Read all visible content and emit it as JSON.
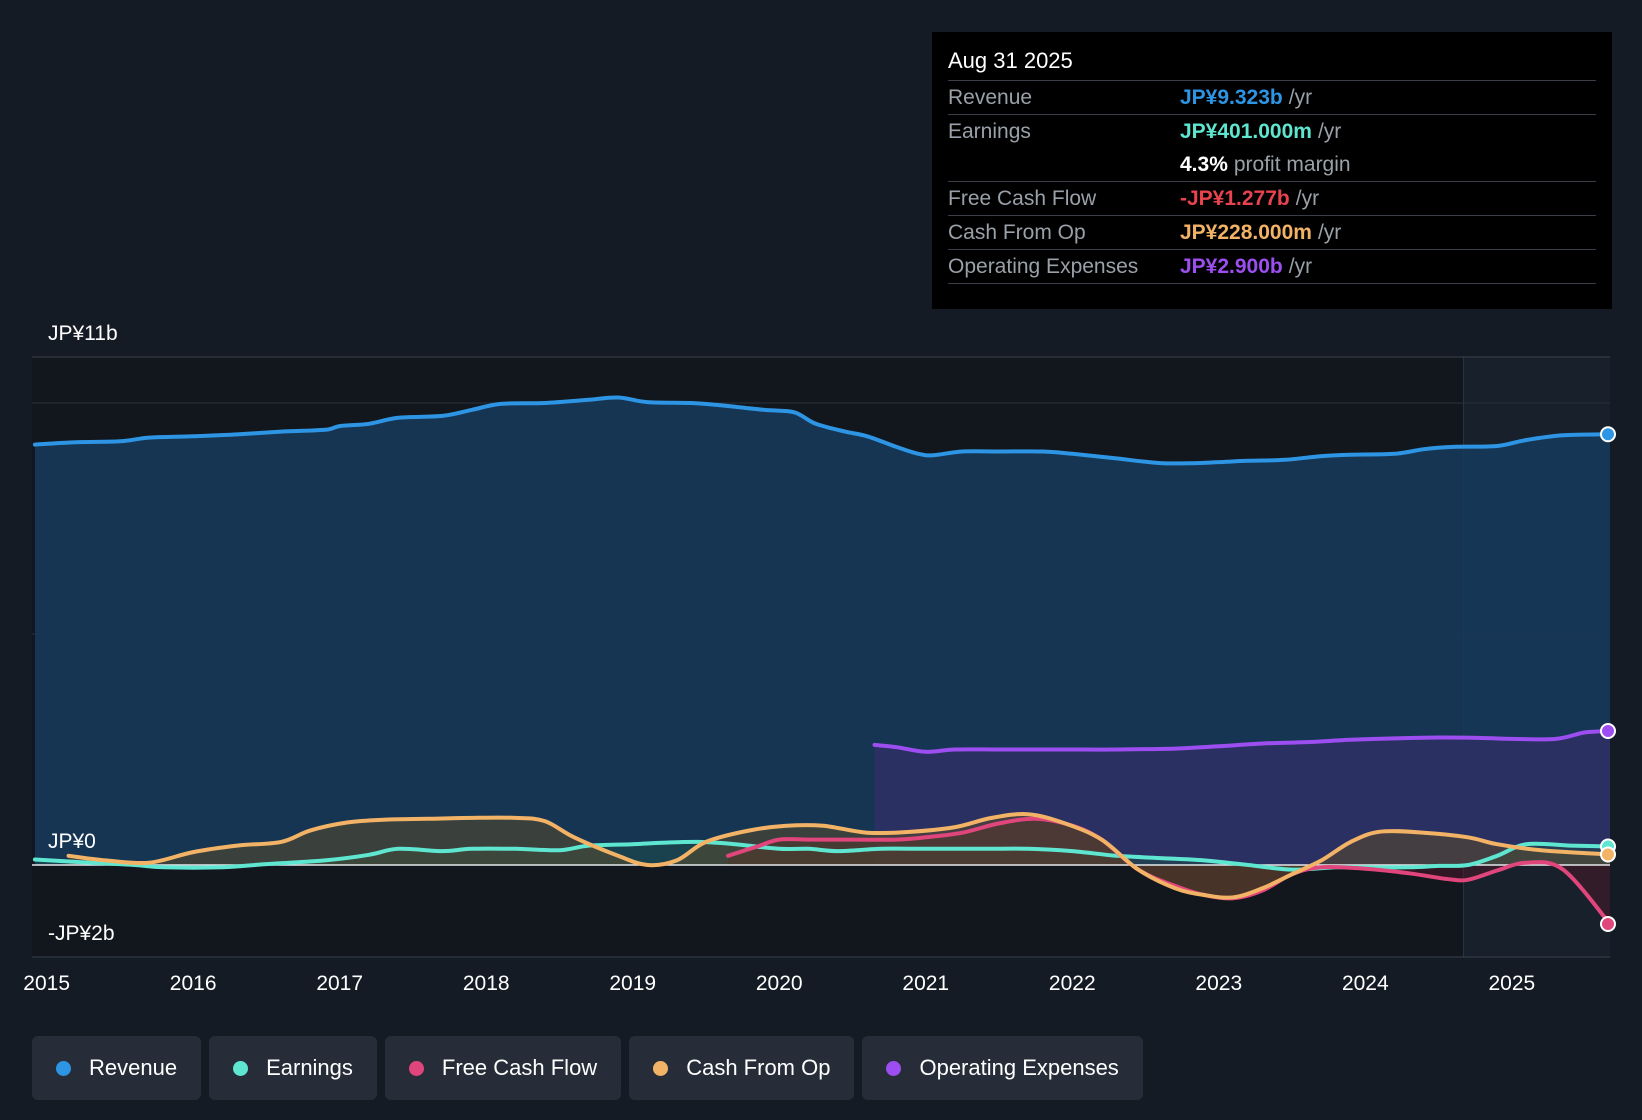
{
  "chart_data": {
    "type": "area",
    "currency": "JP¥",
    "y_labels": {
      "top": "JP¥11b",
      "zero": "JP¥0",
      "bottom": "-JP¥2b"
    },
    "ylim": [
      -2,
      11
    ],
    "xlim": [
      2014.9,
      2025.67
    ],
    "x_ticks": [
      "2015",
      "2016",
      "2017",
      "2018",
      "2019",
      "2020",
      "2021",
      "2022",
      "2023",
      "2024",
      "2025"
    ],
    "forecast_start": 2024.67,
    "series": [
      {
        "name": "Revenue",
        "color": "#2d95e3",
        "fill": "#16395a",
        "points": [
          [
            2014.92,
            9.1
          ],
          [
            2015.2,
            9.15
          ],
          [
            2015.5,
            9.17
          ],
          [
            2015.7,
            9.25
          ],
          [
            2016.0,
            9.28
          ],
          [
            2016.3,
            9.32
          ],
          [
            2016.6,
            9.38
          ],
          [
            2016.9,
            9.42
          ],
          [
            2017.0,
            9.5
          ],
          [
            2017.2,
            9.55
          ],
          [
            2017.4,
            9.68
          ],
          [
            2017.7,
            9.72
          ],
          [
            2017.9,
            9.85
          ],
          [
            2018.1,
            9.98
          ],
          [
            2018.4,
            10.0
          ],
          [
            2018.7,
            10.07
          ],
          [
            2018.9,
            10.12
          ],
          [
            2019.1,
            10.02
          ],
          [
            2019.4,
            10.0
          ],
          [
            2019.6,
            9.95
          ],
          [
            2019.9,
            9.85
          ],
          [
            2020.1,
            9.8
          ],
          [
            2020.25,
            9.55
          ],
          [
            2020.45,
            9.38
          ],
          [
            2020.6,
            9.28
          ],
          [
            2020.8,
            9.05
          ],
          [
            2020.95,
            8.9
          ],
          [
            2021.05,
            8.87
          ],
          [
            2021.25,
            8.95
          ],
          [
            2021.5,
            8.95
          ],
          [
            2021.8,
            8.95
          ],
          [
            2022.0,
            8.9
          ],
          [
            2022.3,
            8.8
          ],
          [
            2022.6,
            8.7
          ],
          [
            2022.85,
            8.7
          ],
          [
            2023.0,
            8.72
          ],
          [
            2023.2,
            8.75
          ],
          [
            2023.45,
            8.77
          ],
          [
            2023.7,
            8.85
          ],
          [
            2023.9,
            8.88
          ],
          [
            2024.2,
            8.9
          ],
          [
            2024.4,
            9.0
          ],
          [
            2024.6,
            9.05
          ],
          [
            2024.9,
            9.07
          ],
          [
            2025.1,
            9.2
          ],
          [
            2025.35,
            9.3
          ],
          [
            2025.67,
            9.323
          ]
        ]
      },
      {
        "name": "Operating Expenses",
        "color": "#9d4ef0",
        "fill": "#3d2c6e",
        "points": [
          [
            2020.65,
            2.6
          ],
          [
            2020.8,
            2.55
          ],
          [
            2021.0,
            2.45
          ],
          [
            2021.2,
            2.5
          ],
          [
            2021.5,
            2.5
          ],
          [
            2021.8,
            2.5
          ],
          [
            2022.0,
            2.5
          ],
          [
            2022.3,
            2.5
          ],
          [
            2022.7,
            2.52
          ],
          [
            2023.0,
            2.57
          ],
          [
            2023.3,
            2.63
          ],
          [
            2023.6,
            2.66
          ],
          [
            2023.9,
            2.71
          ],
          [
            2024.2,
            2.74
          ],
          [
            2024.5,
            2.76
          ],
          [
            2024.8,
            2.75
          ],
          [
            2025.0,
            2.73
          ],
          [
            2025.3,
            2.73
          ],
          [
            2025.5,
            2.87
          ],
          [
            2025.67,
            2.9
          ]
        ]
      },
      {
        "name": "Earnings",
        "color": "#5ee6d0",
        "fill": "#1f4a4a",
        "points": [
          [
            2014.92,
            0.12
          ],
          [
            2015.3,
            0.05
          ],
          [
            2015.6,
            0.0
          ],
          [
            2015.8,
            -0.05
          ],
          [
            2016.2,
            -0.05
          ],
          [
            2016.5,
            0.02
          ],
          [
            2016.9,
            0.1
          ],
          [
            2017.2,
            0.22
          ],
          [
            2017.4,
            0.35
          ],
          [
            2017.7,
            0.3
          ],
          [
            2017.9,
            0.35
          ],
          [
            2018.2,
            0.35
          ],
          [
            2018.5,
            0.32
          ],
          [
            2018.7,
            0.42
          ],
          [
            2019.0,
            0.45
          ],
          [
            2019.2,
            0.48
          ],
          [
            2019.45,
            0.5
          ],
          [
            2019.7,
            0.45
          ],
          [
            2020.0,
            0.35
          ],
          [
            2020.2,
            0.35
          ],
          [
            2020.4,
            0.3
          ],
          [
            2020.7,
            0.35
          ],
          [
            2021.0,
            0.35
          ],
          [
            2021.4,
            0.35
          ],
          [
            2021.7,
            0.35
          ],
          [
            2022.0,
            0.3
          ],
          [
            2022.3,
            0.2
          ],
          [
            2022.6,
            0.15
          ],
          [
            2022.9,
            0.1
          ],
          [
            2023.2,
            0.0
          ],
          [
            2023.5,
            -0.1
          ],
          [
            2023.8,
            -0.05
          ],
          [
            2024.0,
            -0.05
          ],
          [
            2024.3,
            -0.05
          ],
          [
            2024.5,
            -0.02
          ],
          [
            2024.7,
            0.0
          ],
          [
            2024.9,
            0.2
          ],
          [
            2025.1,
            0.45
          ],
          [
            2025.4,
            0.42
          ],
          [
            2025.67,
            0.401
          ]
        ]
      },
      {
        "name": "Free Cash Flow",
        "color": "#e0457b",
        "fill": "#4a1a2a",
        "points": [
          [
            2019.65,
            0.2
          ],
          [
            2019.85,
            0.4
          ],
          [
            2020.0,
            0.55
          ],
          [
            2020.2,
            0.55
          ],
          [
            2020.5,
            0.55
          ],
          [
            2020.8,
            0.55
          ],
          [
            2021.0,
            0.6
          ],
          [
            2021.25,
            0.7
          ],
          [
            2021.5,
            0.9
          ],
          [
            2021.75,
            1.0
          ],
          [
            2022.0,
            0.85
          ],
          [
            2022.2,
            0.55
          ],
          [
            2022.45,
            -0.1
          ],
          [
            2022.7,
            -0.45
          ],
          [
            2022.9,
            -0.65
          ],
          [
            2023.1,
            -0.72
          ],
          [
            2023.3,
            -0.55
          ],
          [
            2023.5,
            -0.2
          ],
          [
            2023.7,
            -0.05
          ],
          [
            2024.0,
            -0.08
          ],
          [
            2024.3,
            -0.18
          ],
          [
            2024.55,
            -0.3
          ],
          [
            2024.7,
            -0.32
          ],
          [
            2024.9,
            -0.12
          ],
          [
            2025.1,
            0.05
          ],
          [
            2025.35,
            -0.1
          ],
          [
            2025.67,
            -1.277
          ]
        ]
      },
      {
        "name": "Cash From Op",
        "color": "#f2b366",
        "fill": "#5a4a2a",
        "points": [
          [
            2015.15,
            0.2
          ],
          [
            2015.4,
            0.1
          ],
          [
            2015.7,
            0.05
          ],
          [
            2016.0,
            0.28
          ],
          [
            2016.3,
            0.42
          ],
          [
            2016.6,
            0.5
          ],
          [
            2016.8,
            0.75
          ],
          [
            2017.05,
            0.92
          ],
          [
            2017.3,
            0.98
          ],
          [
            2017.6,
            1.0
          ],
          [
            2017.9,
            1.02
          ],
          [
            2018.2,
            1.02
          ],
          [
            2018.4,
            0.95
          ],
          [
            2018.6,
            0.6
          ],
          [
            2018.9,
            0.2
          ],
          [
            2019.1,
            0.0
          ],
          [
            2019.3,
            0.1
          ],
          [
            2019.5,
            0.5
          ],
          [
            2019.8,
            0.75
          ],
          [
            2020.05,
            0.85
          ],
          [
            2020.3,
            0.85
          ],
          [
            2020.6,
            0.7
          ],
          [
            2020.9,
            0.72
          ],
          [
            2021.2,
            0.82
          ],
          [
            2021.45,
            1.02
          ],
          [
            2021.7,
            1.1
          ],
          [
            2021.95,
            0.9
          ],
          [
            2022.2,
            0.55
          ],
          [
            2022.45,
            -0.1
          ],
          [
            2022.7,
            -0.5
          ],
          [
            2022.9,
            -0.65
          ],
          [
            2023.1,
            -0.7
          ],
          [
            2023.3,
            -0.5
          ],
          [
            2023.5,
            -0.2
          ],
          [
            2023.7,
            0.1
          ],
          [
            2023.9,
            0.5
          ],
          [
            2024.1,
            0.72
          ],
          [
            2024.4,
            0.7
          ],
          [
            2024.7,
            0.6
          ],
          [
            2024.9,
            0.45
          ],
          [
            2025.2,
            0.32
          ],
          [
            2025.67,
            0.228
          ]
        ]
      }
    ]
  },
  "tooltip": {
    "date": "Aug 31 2025",
    "rows": [
      {
        "label": "Revenue",
        "value": "JP¥9.323b",
        "unit": "/yr",
        "color": "#2d95e3"
      },
      {
        "label": "Earnings",
        "value": "JP¥401.000m",
        "unit": "/yr",
        "color": "#5ee6d0"
      },
      {
        "label": "",
        "value": "4.3%",
        "unit": "profit margin",
        "color": "#ffffff"
      },
      {
        "label": "Free Cash Flow",
        "value": "-JP¥1.277b",
        "unit": "/yr",
        "color": "#e8434f"
      },
      {
        "label": "Cash From Op",
        "value": "JP¥228.000m",
        "unit": "/yr",
        "color": "#f2b366"
      },
      {
        "label": "Operating Expenses",
        "value": "JP¥2.900b",
        "unit": "/yr",
        "color": "#9d4ef0"
      }
    ]
  },
  "legend": [
    {
      "label": "Revenue",
      "color": "#2d95e3"
    },
    {
      "label": "Earnings",
      "color": "#5ee6d0"
    },
    {
      "label": "Free Cash Flow",
      "color": "#e0457b"
    },
    {
      "label": "Cash From Op",
      "color": "#f2b366"
    },
    {
      "label": "Operating Expenses",
      "color": "#9d4ef0"
    }
  ]
}
